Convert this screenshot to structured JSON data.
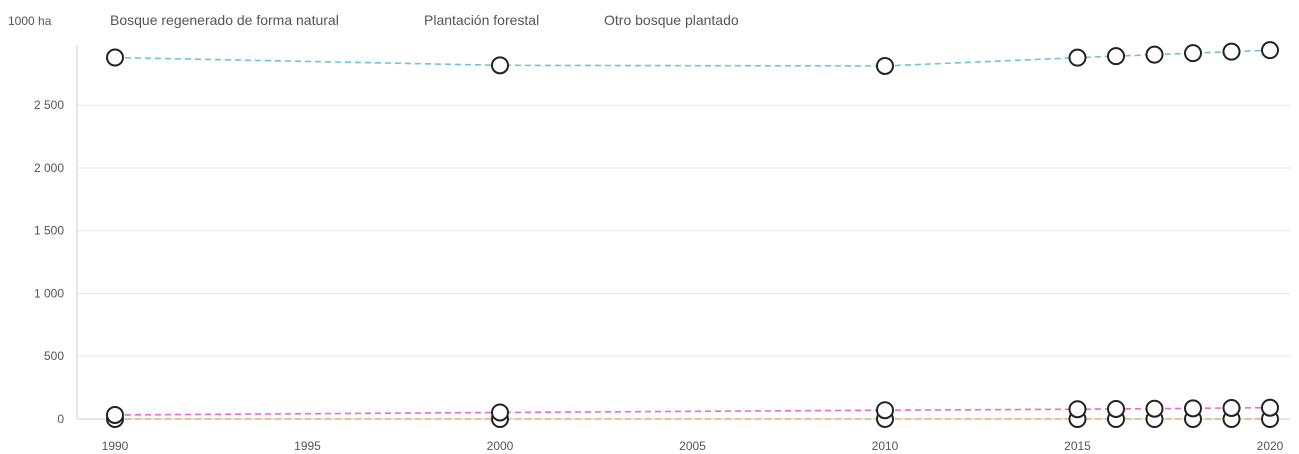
{
  "chart_data": {
    "type": "line",
    "unit_label": "1000 ha",
    "x": [
      1990,
      2000,
      2010,
      2015,
      2016,
      2017,
      2018,
      2019,
      2020
    ],
    "xticks": [
      1990,
      1995,
      2000,
      2005,
      2010,
      2015,
      2020
    ],
    "yticks": [
      0,
      500,
      1000,
      1500,
      2000,
      2500
    ],
    "ytick_labels": [
      "0",
      "500",
      "1 000",
      "1 500",
      "2 000",
      "2 500"
    ],
    "xlim": [
      1990,
      2020
    ],
    "ylim": [
      0,
      2980
    ],
    "grid": true,
    "legend_position": "top",
    "series": [
      {
        "name": "Bosque regenerado de forma natural",
        "color": "#6cc5d6",
        "values": [
          2880,
          2818,
          2813,
          2879,
          2891,
          2903,
          2915,
          2927,
          2939
        ]
      },
      {
        "name": "Plantación forestal",
        "color": "#e56ad8",
        "values": [
          32,
          52,
          70,
          78,
          80,
          82,
          85,
          88,
          90
        ]
      },
      {
        "name": "Otro bosque plantado",
        "color": "#e8a86a",
        "values": [
          0,
          0,
          0,
          0,
          0,
          0,
          0,
          0,
          0
        ]
      }
    ]
  }
}
